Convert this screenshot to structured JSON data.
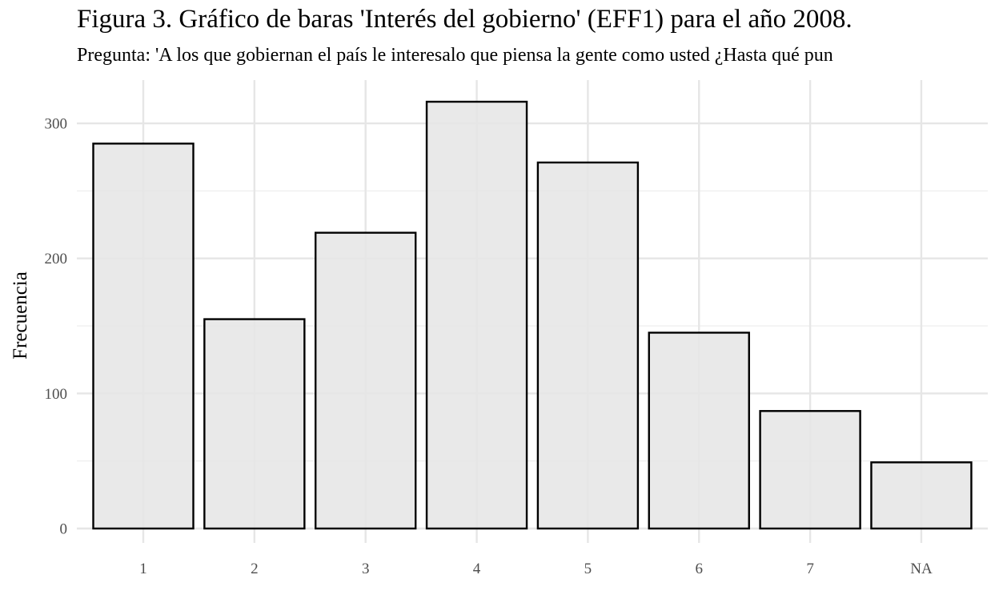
{
  "chart_data": {
    "type": "bar",
    "title": "Figura 3. Gráfico de baras 'Interés del gobierno' (EFF1) para el año 2008.",
    "subtitle": "Pregunta: 'A los que gobiernan el país le interesalo que piensa la gente como usted ¿Hasta qué pun",
    "xlabel": "",
    "ylabel": "Frecuencia",
    "categories": [
      "1",
      "2",
      "3",
      "4",
      "5",
      "6",
      "7",
      "NA"
    ],
    "values": [
      285,
      155,
      219,
      316,
      271,
      145,
      87,
      49
    ],
    "ylim": [
      0,
      330
    ],
    "yticks": [
      0,
      100,
      200,
      300
    ],
    "grid": true,
    "legend": "none",
    "colors": {
      "bar_fill": "#e5e5e5",
      "bar_stroke": "#000000",
      "grid_major": "#e6e6e6",
      "grid_minor": "#f0f0f0"
    }
  }
}
